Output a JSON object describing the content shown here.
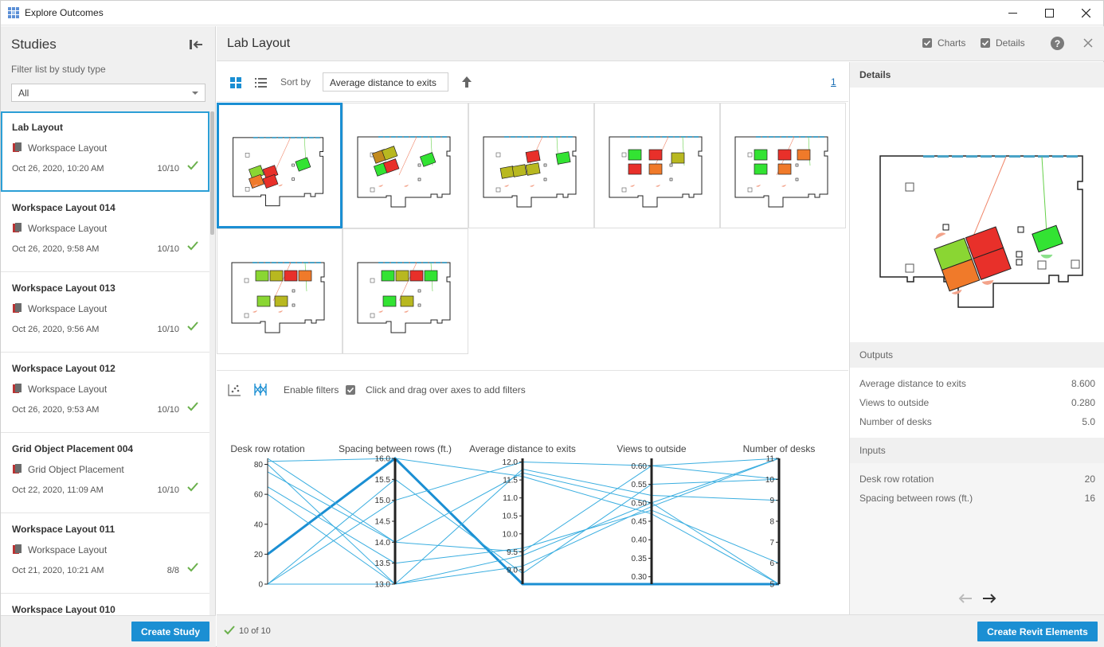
{
  "window": {
    "title": "Explore Outcomes"
  },
  "left": {
    "title": "Studies",
    "filter_label": "Filter list by study type",
    "filter_value": "All",
    "studies": [
      {
        "name": "Lab Layout",
        "type": "Workspace Layout",
        "date": "Oct 26, 2020, 10:20 AM",
        "count": "10/10"
      },
      {
        "name": "Workspace Layout 014",
        "type": "Workspace Layout",
        "date": "Oct 26, 2020, 9:58 AM",
        "count": "10/10"
      },
      {
        "name": "Workspace Layout 013",
        "type": "Workspace Layout",
        "date": "Oct 26, 2020, 9:56 AM",
        "count": "10/10"
      },
      {
        "name": "Workspace Layout 012",
        "type": "Workspace Layout",
        "date": "Oct 26, 2020, 9:53 AM",
        "count": "10/10"
      },
      {
        "name": "Grid Object Placement 004",
        "type": "Grid Object Placement",
        "date": "Oct 22, 2020, 11:09 AM",
        "count": "10/10"
      },
      {
        "name": "Workspace Layout 011",
        "type": "Workspace Layout",
        "date": "Oct 21, 2020, 10:21 AM",
        "count": "8/8"
      },
      {
        "name": "Workspace Layout 010",
        "type": "",
        "date": "",
        "count": ""
      }
    ],
    "create_button": "Create Study"
  },
  "header": {
    "title": "Lab Layout",
    "charts_label": "Charts",
    "details_label": "Details",
    "help": "?"
  },
  "toolbar": {
    "sort_label": "Sort by",
    "sort_value": "Average distance to exits",
    "page": "1"
  },
  "chart_panel": {
    "enable_filters": "Enable filters",
    "hint": "Click and drag over axes to add filters"
  },
  "footer": {
    "status": "10 of 10",
    "create_revit": "Create Revit Elements"
  },
  "details": {
    "title": "Details",
    "outputs_title": "Outputs",
    "outputs": [
      {
        "label": "Average distance to exits",
        "value": "8.600"
      },
      {
        "label": "Views to outside",
        "value": "0.280"
      },
      {
        "label": "Number of desks",
        "value": "5.0"
      }
    ],
    "inputs_title": "Inputs",
    "inputs": [
      {
        "label": "Desk row rotation",
        "value": "20"
      },
      {
        "label": "Spacing between rows (ft.)",
        "value": "16"
      }
    ]
  },
  "chart_data": {
    "type": "parallel-coordinates",
    "axes": [
      {
        "label": "Desk row rotation",
        "ticks": [
          "0",
          "20",
          "40",
          "60",
          "80"
        ],
        "range": [
          0,
          84
        ]
      },
      {
        "label": "Spacing between rows (ft.)",
        "ticks": [
          "13.0",
          "13.5",
          "14.0",
          "14.5",
          "15.0",
          "15.5",
          "16.0"
        ],
        "range": [
          13,
          16
        ]
      },
      {
        "label": "Average distance to exits",
        "ticks": [
          "9.0",
          "9.5",
          "10.0",
          "10.5",
          "11.0",
          "11.5",
          "12.0"
        ],
        "range": [
          8.6,
          12.1
        ]
      },
      {
        "label": "Views to outside",
        "ticks": [
          "0.30",
          "0.35",
          "0.40",
          "0.45",
          "0.50",
          "0.55",
          "0.60"
        ],
        "range": [
          0.28,
          0.62
        ]
      },
      {
        "label": "Number of desks",
        "ticks": [
          "5",
          "6",
          "7",
          "8",
          "9",
          "10",
          "11"
        ],
        "range": [
          5,
          11
        ]
      }
    ],
    "lines": [
      [
        20,
        16,
        8.6,
        0.28,
        5
      ],
      [
        84,
        14,
        9.5,
        0.6,
        11
      ],
      [
        80,
        13,
        11.8,
        0.52,
        9
      ],
      [
        75,
        14,
        11.7,
        0.5,
        11
      ],
      [
        65,
        13.5,
        9.6,
        0.48,
        6
      ],
      [
        60,
        13,
        9.4,
        0.5,
        5
      ],
      [
        0,
        15.5,
        8.9,
        0.55,
        10
      ],
      [
        0,
        15,
        12,
        0.6,
        10
      ],
      [
        0,
        13,
        9.1,
        0.49,
        11
      ],
      [
        82,
        16,
        11.6,
        0.47,
        5
      ]
    ],
    "highlight_index": 0,
    "colors": {
      "line": "#3aaee0",
      "highlight": "#1b8fd3"
    }
  }
}
